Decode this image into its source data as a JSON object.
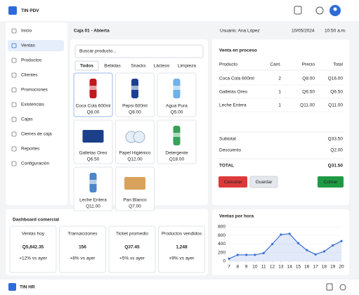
{
  "header": {
    "title": "TIN PDV"
  },
  "sidebar": {
    "items": [
      "Inicio",
      "Ventas",
      "Productos",
      "Clientes",
      "Promociones",
      "Existencias",
      "Cajas",
      "Cierres de caja",
      "Reportes",
      "Configuración"
    ]
  },
  "status": {
    "register": "Caja 01 - Abierta",
    "user": "Usuario: Ana López",
    "date": "10/05/2024",
    "time": "10:50 a.m."
  },
  "catalog": {
    "search_placeholder": "Buscar producto...",
    "tabs": [
      "Todos",
      "Bebidas",
      "Snacks",
      "Lácteos",
      "Limpieza"
    ],
    "products": [
      {
        "name": "Coca Cola 600ml",
        "price": "Q8.00"
      },
      {
        "name": "Pepsi 600ml",
        "price": "Q8.00"
      },
      {
        "name": "Agua Pura",
        "price": "Q5.00"
      },
      {
        "name": "Galletas Oreo",
        "price": "Q6.50"
      },
      {
        "name": "Papel Higiénico",
        "price": "Q12.00"
      },
      {
        "name": "Detergente",
        "price": "Q18.00"
      },
      {
        "name": "Leche Entera",
        "price": "Q11.00"
      },
      {
        "name": "Pan Blanco",
        "price": "Q7.00"
      }
    ]
  },
  "sale": {
    "title": "Venta en proceso",
    "columns": [
      "Producto",
      "Cant.",
      "Precio",
      "Total"
    ],
    "rows": [
      [
        "Coca Cola 600ml",
        "2",
        "Q8.00",
        "Q16.00"
      ],
      [
        "Galletas Oreo",
        "1",
        "Q6.50",
        "Q6.50"
      ],
      [
        "Leche Entera",
        "1",
        "Q11.00",
        "Q11.00"
      ]
    ],
    "subtotal": {
      "label": "Subtotal",
      "value": "Q33.50"
    },
    "discount": {
      "label": "Descuento",
      "value": "Q2.00"
    },
    "total": {
      "label": "TOTAL",
      "value": "Q31.50"
    },
    "buttons": [
      "Cancelar",
      "Guardar",
      "Cobrar"
    ]
  },
  "dashboard": {
    "title": "Dashboard comercial",
    "cards": [
      {
        "label": "Ventas hoy",
        "value": "Q5,842.35",
        "change": "+12% vs ayer"
      },
      {
        "label": "Transacciones",
        "value": "156",
        "change": "+8% vs ayer"
      },
      {
        "label": "Ticket promedio",
        "value": "Q37.45",
        "change": "+5% vs ayer"
      },
      {
        "label": "Productos vendidos",
        "value": "1,248",
        "change": "+9% vs ayer"
      }
    ]
  },
  "hourly_chart": {
    "type": "line",
    "title": "Ventas por hora",
    "x": [
      7,
      8,
      9,
      10,
      11,
      12,
      13,
      14,
      15,
      16,
      17,
      18,
      19,
      20
    ],
    "values": [
      60,
      150,
      150,
      150,
      190,
      400,
      620,
      640,
      420,
      260,
      160,
      230,
      370,
      470
    ],
    "color": "#3b6fd6",
    "xlim": [
      7,
      20
    ],
    "ylim": [
      0,
      800
    ],
    "xticks": [
      7,
      8,
      9,
      10,
      11,
      12,
      13,
      14,
      15,
      16,
      17,
      18,
      19,
      20
    ],
    "yticks": [
      0,
      200,
      400,
      600,
      800
    ],
    "grid": true
  },
  "footer": {
    "title": "TIN HR"
  }
}
